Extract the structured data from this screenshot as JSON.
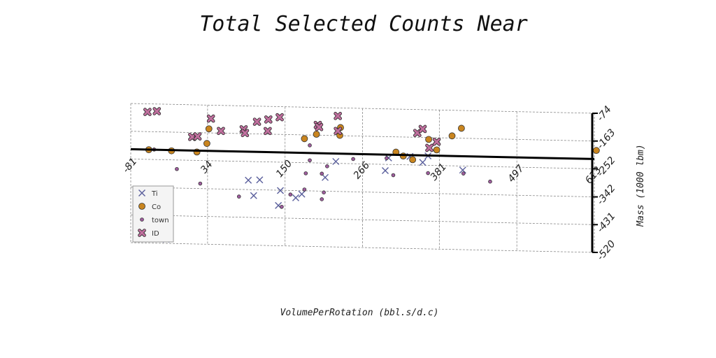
{
  "chart_data": {
    "type": "scatter",
    "title": "Total Selected Counts Near",
    "xlabel": "VolumePerRotation (bbl.s/d.c)",
    "ylabel": "Mass (1000 lbm)",
    "xlim": [
      -81,
      613
    ],
    "ylim": [
      -520,
      -74
    ],
    "x_ticks": [
      "-81",
      "34",
      "150",
      "266",
      "381",
      "497",
      "613"
    ],
    "y_ticks": [
      "-74",
      "-163",
      "-252",
      "-342",
      "-431",
      "-520"
    ],
    "grid": true,
    "legend": "lower-left",
    "colors": {
      "Ti": "#5a5f9c",
      "Co": "#c9851f",
      "town": "#a05d9f",
      "ID": "#c0709e"
    },
    "series": [
      {
        "name": "Ti",
        "marker": "x",
        "points": [
          [
            -28,
            -507
          ],
          [
            95,
            -312
          ],
          [
            103,
            -361
          ],
          [
            112,
            -310
          ],
          [
            140,
            -391
          ],
          [
            143,
            -343
          ],
          [
            166,
            -365
          ],
          [
            175,
            -353
          ],
          [
            210,
            -298
          ],
          [
            226,
            -246
          ],
          [
            300,
            -272
          ],
          [
            305,
            -231
          ],
          [
            356,
            -243
          ],
          [
            364,
            -222
          ],
          [
            337,
            -225
          ],
          [
            416,
            -265
          ]
        ]
      },
      {
        "name": "Co",
        "marker": "o",
        "points": [
          [
            -20,
            -223
          ],
          [
            18,
            -225
          ],
          [
            -54,
            -221
          ],
          [
            179,
            -175
          ],
          [
            197,
            -160
          ],
          [
            233,
            -137
          ],
          [
            232,
            -162
          ],
          [
            33,
            -197
          ],
          [
            36,
            -150
          ],
          [
            316,
            -212
          ],
          [
            327,
            -224
          ],
          [
            341,
            -235
          ],
          [
            365,
            -169
          ],
          [
            377,
            -202
          ],
          [
            400,
            -156
          ],
          [
            414,
            -131
          ],
          [
            616,
            -193
          ]
        ]
      },
      {
        "name": "town",
        "marker": "o",
        "points": [
          [
            -46,
            -220
          ],
          [
            -12,
            -281
          ],
          [
            23,
            -326
          ],
          [
            81,
            -365
          ],
          [
            145,
            -395
          ],
          [
            158,
            -355
          ],
          [
            179,
            -338
          ],
          [
            181,
            -286
          ],
          [
            187,
            -244
          ],
          [
            187,
            -196
          ],
          [
            205,
            -286
          ],
          [
            205,
            -368
          ],
          [
            208,
            -346
          ],
          [
            213,
            -262
          ],
          [
            252,
            -237
          ],
          [
            302,
            -232
          ],
          [
            312,
            -286
          ],
          [
            364,
            -277
          ],
          [
            417,
            -276
          ],
          [
            457,
            -300
          ]
        ]
      },
      {
        "name": "ID",
        "marker": "X",
        "points": [
          [
            -56,
            -100
          ],
          [
            -42,
            -97
          ],
          [
            11,
            -177
          ],
          [
            19,
            -175
          ],
          [
            39,
            -117
          ],
          [
            54,
            -156
          ],
          [
            88,
            -149
          ],
          [
            90,
            -161
          ],
          [
            108,
            -124
          ],
          [
            125,
            -116
          ],
          [
            124,
            -153
          ],
          [
            142,
            -108
          ],
          [
            199,
            -130
          ],
          [
            201,
            -137
          ],
          [
            229,
            -100
          ],
          [
            229,
            -148
          ],
          [
            348,
            -149
          ],
          [
            356,
            -136
          ],
          [
            366,
            -196
          ],
          [
            377,
            -176
          ]
        ]
      }
    ]
  }
}
